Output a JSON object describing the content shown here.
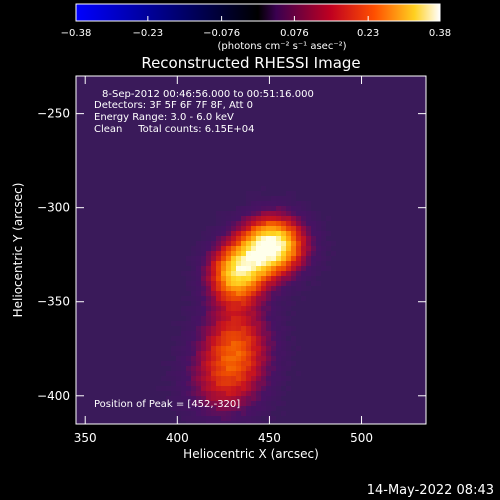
{
  "chart_data": {
    "type": "heatmap",
    "title": "Reconstructed RHESSI Image",
    "xlabel": "Heliocentric X (arcsec)",
    "ylabel": "Heliocentric Y (arcsec)",
    "xlim": [
      345,
      535
    ],
    "ylim": [
      -415,
      -230
    ],
    "xticks": [
      {
        "value": 350,
        "label": "350"
      },
      {
        "value": 400,
        "label": "400"
      },
      {
        "value": 450,
        "label": "450"
      },
      {
        "value": 500,
        "label": "500"
      }
    ],
    "yticks": [
      {
        "value": -250,
        "label": "−250"
      },
      {
        "value": -300,
        "label": "−300"
      },
      {
        "value": -350,
        "label": "−350"
      },
      {
        "value": -400,
        "label": "−400"
      }
    ],
    "colorbar": {
      "range": [
        -0.38,
        0.38
      ],
      "ticks": [
        {
          "value": -0.38,
          "label": "−0.38"
        },
        {
          "value": -0.23,
          "label": "−0.23"
        },
        {
          "value": -0.076,
          "label": "−0.076"
        },
        {
          "value": 0.076,
          "label": "0.076"
        },
        {
          "value": 0.23,
          "label": "0.23"
        },
        {
          "value": 0.38,
          "label": "0.38"
        }
      ],
      "unit_label": "(photons cm⁻² s⁻¹ asec⁻²)"
    },
    "info_lines": [
      "8-Sep-2012 00:46:56.000 to 00:51:16.000",
      "Detectors: 3F 5F 6F 7F 8F, Att 0",
      "Energy Range: 3.0 - 6.0 keV",
      "Clean     Total counts: 6.15E+04"
    ],
    "peak_label": "Position of Peak = [452,-320]",
    "peak": {
      "x": 452,
      "y": -320
    },
    "sources": [
      {
        "x": 452,
        "y": -320,
        "amp": 0.38
      },
      {
        "x": 432,
        "y": -335,
        "amp": 0.3
      },
      {
        "x": 432,
        "y": -372,
        "amp": 0.2
      },
      {
        "x": 425,
        "y": -395,
        "amp": 0.13
      }
    ]
  },
  "footer_timestamp": "14-May-2022 08:43"
}
